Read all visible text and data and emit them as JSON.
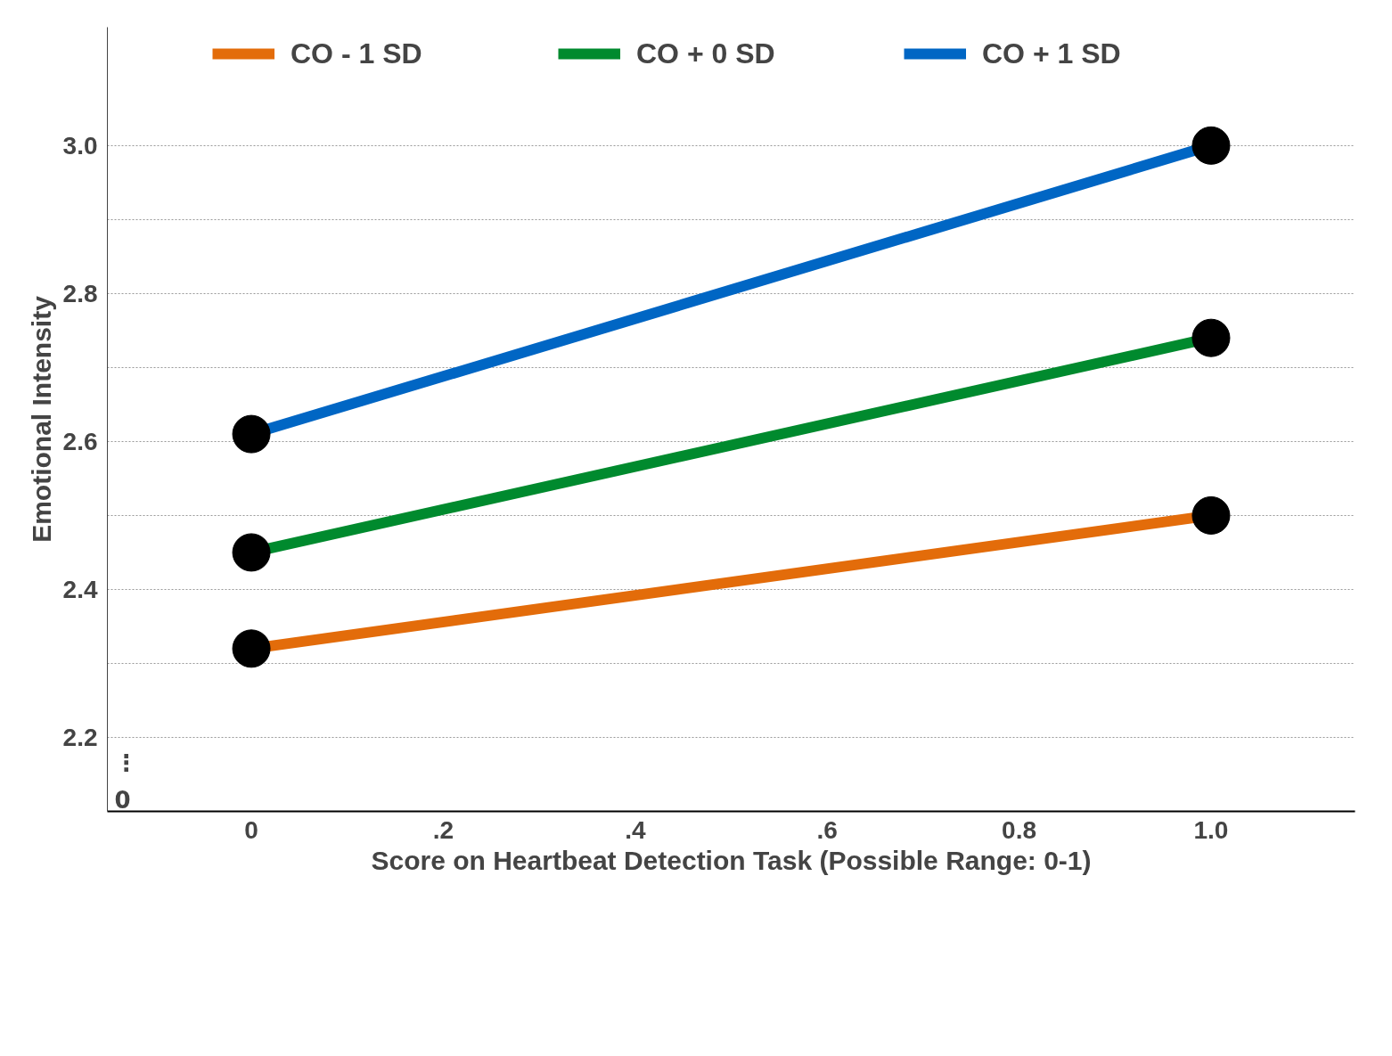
{
  "chart_data": {
    "type": "line",
    "xlabel": "Score on Heartbeat Detection Task (Possible Range: 0-1)",
    "ylabel": "Emotional Intensity",
    "x": [
      0,
      1
    ],
    "series": [
      {
        "name": "CO - 1 SD",
        "color": "#e36c0a",
        "values": [
          2.32,
          2.5
        ]
      },
      {
        "name": "CO + 0 SD",
        "color": "#008a2e",
        "values": [
          2.45,
          2.74
        ]
      },
      {
        "name": "CO + 1 SD",
        "color": "#0066c4",
        "values": [
          2.61,
          3.0
        ]
      }
    ],
    "xlim": [
      -0.15,
      1.15
    ],
    "xticks": [
      0,
      {
        "value": 0.2,
        "label": ".2"
      },
      {
        "value": 0.4,
        "label": ".4"
      },
      {
        "value": 0.6,
        "label": ".6"
      },
      {
        "value": 0.8,
        "label": "0.8"
      },
      {
        "value": 1.0,
        "label": "1.0"
      }
    ],
    "ylim": [
      2.1,
      3.16
    ],
    "annotations": [
      "⋮",
      "0"
    ],
    "yticks": [
      {
        "value": 2.2,
        "label": "2.2"
      },
      {
        "value": 2.3,
        "label": null
      },
      {
        "value": 2.4,
        "label": "2.4"
      },
      {
        "value": 2.5,
        "label": null
      },
      {
        "value": 2.6,
        "label": "2.6"
      },
      {
        "value": 2.7,
        "label": null
      },
      {
        "value": 2.8,
        "label": "2.8"
      },
      {
        "value": 2.9,
        "label": null
      },
      {
        "value": 3.0,
        "label": "3.0"
      }
    ],
    "grid": "y",
    "legend": "top",
    "marker": "circle",
    "line_style": "solid"
  }
}
